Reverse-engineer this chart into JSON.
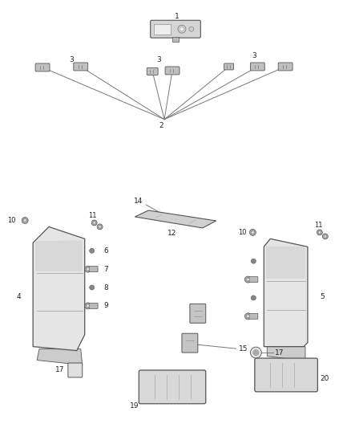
{
  "bg_color": "#ffffff",
  "fig_width": 4.38,
  "fig_height": 5.33,
  "dpi": 100,
  "line_color": "#777777",
  "label_color": "#222222",
  "label_fontsize": 6.5
}
